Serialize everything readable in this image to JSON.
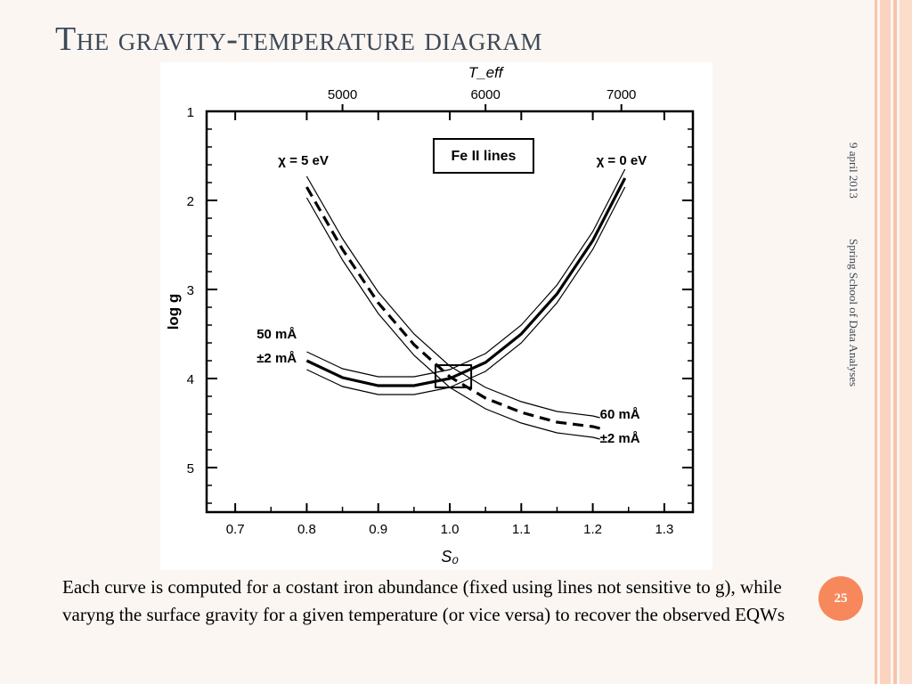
{
  "slide": {
    "title": "The gravity-temperature diagram",
    "caption": "Each curve is computed for a costant iron abundance (fixed using lines not sensitive to g), while varyng the surface gravity for a given temperature (or vice versa) to recover the observed EQWs",
    "date": "9 april 2013",
    "event": "Spring School of Data Analyses",
    "page_number": "25",
    "colors": {
      "accent": "#f7885b",
      "stripe": "#f9c4ab",
      "title": "#3d4957"
    }
  },
  "chart_data": {
    "type": "line",
    "title": "Fe II lines",
    "xlabel": "S₀",
    "ylabel": "log g",
    "x2label": "T_eff",
    "xlim": [
      0.66,
      1.34
    ],
    "ylim": [
      5.5,
      1.0
    ],
    "xticks": [
      "0.7",
      "0.8",
      "0.9",
      "1.0",
      "1.1",
      "1.2",
      "1.3"
    ],
    "yticks": [
      "1",
      "2",
      "3",
      "4",
      "5"
    ],
    "x2ticks": [
      {
        "label": "5000",
        "at": 0.85
      },
      {
        "label": "6000",
        "at": 1.05
      },
      {
        "label": "7000",
        "at": 1.24
      }
    ],
    "box": {
      "x": [
        0.98,
        1.03
      ],
      "y": [
        3.85,
        4.1
      ]
    },
    "series": [
      {
        "name": "χ = 0 eV",
        "style": "solid",
        "x": [
          0.8,
          0.85,
          0.9,
          0.95,
          1.0,
          1.05,
          1.1,
          1.15,
          1.2,
          1.245
        ],
        "y": [
          3.8,
          3.99,
          4.08,
          4.08,
          4.0,
          3.82,
          3.5,
          3.05,
          2.45,
          1.75
        ],
        "band_offset": 0.1
      },
      {
        "name": "χ = 5 eV",
        "style": "dashed",
        "x": [
          0.8,
          0.85,
          0.9,
          0.95,
          1.0,
          1.05,
          1.1,
          1.15,
          1.2,
          1.21
        ],
        "y": [
          1.85,
          2.55,
          3.15,
          3.62,
          3.98,
          4.22,
          4.38,
          4.49,
          4.54,
          4.56
        ],
        "band_offset": 0.12
      }
    ],
    "annotations": [
      {
        "text": "χ = 5 eV",
        "x": 0.76,
        "y": 1.6
      },
      {
        "text": "χ = 0 eV",
        "x": 1.205,
        "y": 1.6
      },
      {
        "text": "50 mÅ",
        "x": 0.73,
        "y": 3.55
      },
      {
        "text": "±2 mÅ",
        "x": 0.73,
        "y": 3.82
      },
      {
        "text": "60 mÅ",
        "x": 1.21,
        "y": 4.45
      },
      {
        "text": "±2 mÅ",
        "x": 1.21,
        "y": 4.72
      }
    ]
  }
}
